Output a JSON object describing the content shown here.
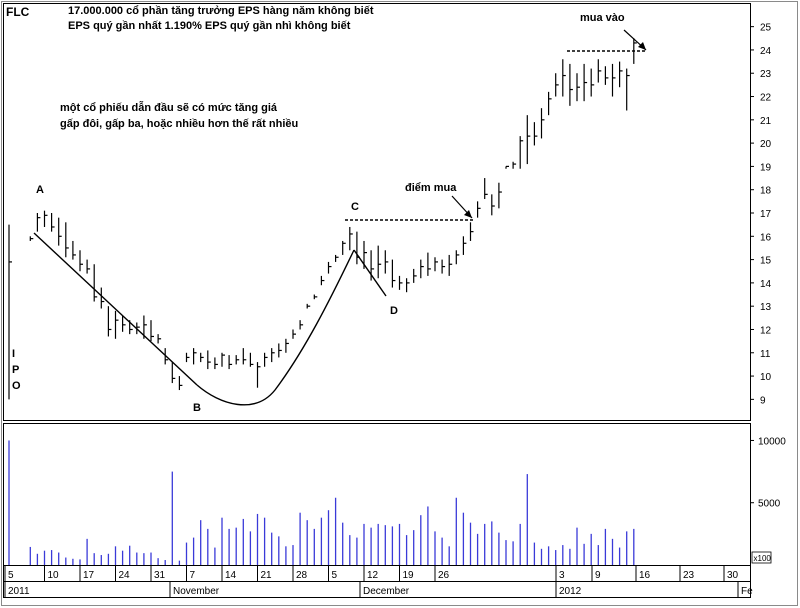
{
  "ticker": "FLC",
  "header": {
    "line1": "17.000.000 cổ phần   tăng trưởng EPS hàng năm không biết",
    "line2": "EPS quý gần nhất 1.190%   EPS quý gần nhì không biết"
  },
  "notes": {
    "line1": "một cổ phiếu dẫn đầu sẽ có mức tăng giá",
    "line2": "gấp đôi, gấp ba, hoặc nhiều hơn thế rất nhiều"
  },
  "ipo_letters": [
    "I",
    "P",
    "O"
  ],
  "annotations": {
    "A": "A",
    "B": "B",
    "C": "C",
    "D": "D",
    "buy_point": "điểm mua",
    "buy_in": "mua vào"
  },
  "volume_unit": "x100",
  "colors": {
    "price": "#000000",
    "volume": "#3a3ad8",
    "pattern": "#000000"
  },
  "chart_data": {
    "type": "bar",
    "subtype": "ohlc-with-volume",
    "x_tick_labels": [
      "5",
      "10",
      "17",
      "24",
      "31",
      "7",
      "14",
      "21",
      "28",
      "5",
      "12",
      "19",
      "26",
      "3",
      "9",
      "16",
      "23",
      "30"
    ],
    "x_period_labels": [
      "2011",
      "November",
      "December",
      "2012",
      "Fe"
    ],
    "price_axis": {
      "ticks": [
        9,
        10,
        11,
        12,
        13,
        14,
        15,
        16,
        17,
        18,
        19,
        20,
        21,
        22,
        23,
        24,
        25
      ],
      "ylim": [
        8.2,
        25.8
      ],
      "grid": false
    },
    "volume_axis": {
      "ticks": [
        5000,
        10000
      ],
      "ylim": [
        0,
        11000
      ],
      "unit": "x100"
    },
    "bars": [
      {
        "date": "2011-10-03",
        "high": 16.5,
        "low": 9.0,
        "close": 14.9,
        "volume": 10000
      },
      {
        "date": "2011-10-06",
        "high": 16.0,
        "low": 15.8,
        "close": 15.9,
        "volume": 1450
      },
      {
        "date": "2011-10-07",
        "high": 17.0,
        "low": 16.2,
        "close": 16.8,
        "volume": 900
      },
      {
        "date": "2011-10-10",
        "high": 17.1,
        "low": 16.4,
        "close": 16.9,
        "volume": 1150
      },
      {
        "date": "2011-10-11",
        "high": 17.0,
        "low": 16.2,
        "close": 16.4,
        "volume": 1200
      },
      {
        "date": "2011-10-12",
        "high": 16.8,
        "low": 15.6,
        "close": 16.0,
        "volume": 1000
      },
      {
        "date": "2011-10-13",
        "high": 16.6,
        "low": 15.1,
        "close": 15.5,
        "volume": 600
      },
      {
        "date": "2011-10-14",
        "high": 15.8,
        "low": 15.0,
        "close": 15.2,
        "volume": 500
      },
      {
        "date": "2011-10-17",
        "high": 15.4,
        "low": 14.5,
        "close": 14.8,
        "volume": 450
      },
      {
        "date": "2011-10-18",
        "high": 15.0,
        "low": 14.4,
        "close": 14.6,
        "volume": 2100
      },
      {
        "date": "2011-10-19",
        "high": 14.8,
        "low": 13.2,
        "close": 13.4,
        "volume": 950
      },
      {
        "date": "2011-10-20",
        "high": 13.8,
        "low": 12.9,
        "close": 13.2,
        "volume": 800
      },
      {
        "date": "2011-10-21",
        "high": 13.0,
        "low": 11.7,
        "close": 12.0,
        "volume": 900
      },
      {
        "date": "2011-10-24",
        "high": 12.8,
        "low": 11.6,
        "close": 12.4,
        "volume": 1500
      },
      {
        "date": "2011-10-25",
        "high": 12.6,
        "low": 11.9,
        "close": 12.2,
        "volume": 1150
      },
      {
        "date": "2011-10-26",
        "high": 12.4,
        "low": 11.8,
        "close": 12.0,
        "volume": 1550
      },
      {
        "date": "2011-10-27",
        "high": 12.3,
        "low": 11.8,
        "close": 12.1,
        "volume": 1000
      },
      {
        "date": "2011-10-28",
        "high": 12.6,
        "low": 11.6,
        "close": 12.2,
        "volume": 950
      },
      {
        "date": "2011-10-31",
        "high": 12.4,
        "low": 11.5,
        "close": 11.7,
        "volume": 1000
      },
      {
        "date": "2011-11-01",
        "high": 11.8,
        "low": 11.4,
        "close": 11.6,
        "volume": 550
      },
      {
        "date": "2011-11-02",
        "high": 11.2,
        "low": 10.5,
        "close": 10.7,
        "volume": 400
      },
      {
        "date": "2011-11-03",
        "high": 10.6,
        "low": 9.7,
        "close": 9.9,
        "volume": 7500
      },
      {
        "date": "2011-11-04",
        "high": 10.0,
        "low": 9.4,
        "close": 9.6,
        "volume": 350
      },
      {
        "date": "2011-11-07",
        "high": 11.0,
        "low": 10.6,
        "close": 10.8,
        "volume": 1800
      },
      {
        "date": "2011-11-08",
        "high": 11.2,
        "low": 10.5,
        "close": 11.0,
        "volume": 2200
      },
      {
        "date": "2011-11-09",
        "high": 11.0,
        "low": 10.6,
        "close": 10.8,
        "volume": 3600
      },
      {
        "date": "2011-11-10",
        "high": 11.1,
        "low": 10.3,
        "close": 10.6,
        "volume": 2900
      },
      {
        "date": "2011-11-11",
        "high": 10.8,
        "low": 10.3,
        "close": 10.5,
        "volume": 1400
      },
      {
        "date": "2011-11-14",
        "high": 11.0,
        "low": 10.4,
        "close": 10.9,
        "volume": 3800
      },
      {
        "date": "2011-11-15",
        "high": 10.9,
        "low": 10.3,
        "close": 10.5,
        "volume": 2900
      },
      {
        "date": "2011-11-16",
        "high": 10.9,
        "low": 10.5,
        "close": 10.7,
        "volume": 3000
      },
      {
        "date": "2011-11-17",
        "high": 11.2,
        "low": 10.5,
        "close": 10.7,
        "volume": 3700
      },
      {
        "date": "2011-11-18",
        "high": 11.0,
        "low": 10.4,
        "close": 10.5,
        "volume": 2700
      },
      {
        "date": "2011-11-21",
        "high": 10.6,
        "low": 9.5,
        "close": 10.4,
        "volume": 4100
      },
      {
        "date": "2011-11-22",
        "high": 11.0,
        "low": 10.4,
        "close": 10.8,
        "volume": 3800
      },
      {
        "date": "2011-11-23",
        "high": 11.2,
        "low": 10.6,
        "close": 11.0,
        "volume": 2600
      },
      {
        "date": "2011-11-24",
        "high": 11.4,
        "low": 10.8,
        "close": 11.1,
        "volume": 2300
      },
      {
        "date": "2011-11-25",
        "high": 11.6,
        "low": 11.0,
        "close": 11.4,
        "volume": 1500
      },
      {
        "date": "2011-11-28",
        "high": 12.0,
        "low": 11.6,
        "close": 11.8,
        "volume": 1600
      },
      {
        "date": "2011-11-29",
        "high": 12.4,
        "low": 12.0,
        "close": 12.2,
        "volume": 4200
      },
      {
        "date": "2011-11-30",
        "high": 13.1,
        "low": 12.9,
        "close": 13.0,
        "volume": 3600
      },
      {
        "date": "2011-12-01",
        "high": 13.5,
        "low": 13.3,
        "close": 13.4,
        "volume": 2900
      },
      {
        "date": "2011-12-02",
        "high": 14.3,
        "low": 13.9,
        "close": 14.1,
        "volume": 3800
      },
      {
        "date": "2011-12-05",
        "high": 14.9,
        "low": 14.4,
        "close": 14.7,
        "volume": 4400
      },
      {
        "date": "2011-12-06",
        "high": 15.2,
        "low": 14.9,
        "close": 15.1,
        "volume": 5400
      },
      {
        "date": "2011-12-07",
        "high": 15.8,
        "low": 15.2,
        "close": 15.7,
        "volume": 3400
      },
      {
        "date": "2011-12-08",
        "high": 16.4,
        "low": 15.4,
        "close": 16.1,
        "volume": 2400
      },
      {
        "date": "2011-12-09",
        "high": 16.2,
        "low": 14.8,
        "close": 15.1,
        "volume": 2200
      },
      {
        "date": "2011-12-12",
        "high": 15.8,
        "low": 14.6,
        "close": 15.3,
        "volume": 3300
      },
      {
        "date": "2011-12-13",
        "high": 15.4,
        "low": 14.1,
        "close": 14.6,
        "volume": 3000
      },
      {
        "date": "2011-12-14",
        "high": 15.6,
        "low": 14.2,
        "close": 14.8,
        "volume": 3300
      },
      {
        "date": "2011-12-15",
        "high": 15.4,
        "low": 14.4,
        "close": 14.9,
        "volume": 3200
      },
      {
        "date": "2011-12-16",
        "high": 15.0,
        "low": 13.8,
        "close": 14.1,
        "volume": 3100
      },
      {
        "date": "2011-12-19",
        "high": 14.3,
        "low": 13.7,
        "close": 14.0,
        "volume": 3300
      },
      {
        "date": "2011-12-20",
        "high": 14.2,
        "low": 13.6,
        "close": 14.0,
        "volume": 2400
      },
      {
        "date": "2011-12-21",
        "high": 14.6,
        "low": 14.0,
        "close": 14.3,
        "volume": 2800
      },
      {
        "date": "2011-12-22",
        "high": 15.0,
        "low": 14.2,
        "close": 14.7,
        "volume": 4000
      },
      {
        "date": "2011-12-23",
        "high": 15.3,
        "low": 14.3,
        "close": 14.6,
        "volume": 4700
      },
      {
        "date": "2011-12-26",
        "high": 15.1,
        "low": 14.5,
        "close": 14.9,
        "volume": 2700
      },
      {
        "date": "2011-12-27",
        "high": 15.0,
        "low": 14.4,
        "close": 14.7,
        "volume": 2200
      },
      {
        "date": "2011-12-28",
        "high": 15.2,
        "low": 14.3,
        "close": 14.8,
        "volume": 1500
      },
      {
        "date": "2011-12-29",
        "high": 15.4,
        "low": 14.8,
        "close": 15.2,
        "volume": 5400
      },
      {
        "date": "2011-12-30",
        "high": 16.0,
        "low": 15.2,
        "close": 15.7,
        "volume": 4200
      },
      {
        "date": "2012-01-02",
        "high": 16.6,
        "low": 15.8,
        "close": 16.2,
        "volume": 3400
      },
      {
        "date": "2012-01-03",
        "high": 17.5,
        "low": 16.8,
        "close": 17.2,
        "volume": 2500
      },
      {
        "date": "2012-01-04",
        "high": 18.5,
        "low": 17.6,
        "close": 17.8,
        "volume": 3300
      },
      {
        "date": "2012-01-05",
        "high": 17.8,
        "low": 16.9,
        "close": 17.3,
        "volume": 3500
      },
      {
        "date": "2012-01-06",
        "high": 18.3,
        "low": 17.2,
        "close": 17.9,
        "volume": 2600
      },
      {
        "date": "2012-01-09",
        "high": 19.0,
        "low": 18.9,
        "close": 19.0,
        "volume": 2000
      },
      {
        "date": "2012-01-10",
        "high": 19.2,
        "low": 18.9,
        "close": 19.1,
        "volume": 1900
      },
      {
        "date": "2012-01-11",
        "high": 20.3,
        "low": 18.9,
        "close": 20.1,
        "volume": 3300
      },
      {
        "date": "2012-01-12",
        "high": 21.2,
        "low": 19.1,
        "close": 20.3,
        "volume": 7300
      },
      {
        "date": "2012-01-13",
        "high": 20.9,
        "low": 19.9,
        "close": 20.3,
        "volume": 1800
      },
      {
        "date": "2012-01-16",
        "high": 21.5,
        "low": 20.2,
        "close": 21.0,
        "volume": 1300
      },
      {
        "date": "2012-01-17",
        "high": 22.2,
        "low": 21.2,
        "close": 21.9,
        "volume": 1500
      },
      {
        "date": "2012-01-18",
        "high": 23.0,
        "low": 22.0,
        "close": 22.5,
        "volume": 1200
      },
      {
        "date": "2012-01-19",
        "high": 23.6,
        "low": 22.0,
        "close": 22.9,
        "volume": 1600
      },
      {
        "date": "2012-01-20",
        "high": 23.4,
        "low": 21.6,
        "close": 22.3,
        "volume": 1300
      },
      {
        "date": "2012-01-23",
        "high": 23.0,
        "low": 21.8,
        "close": 22.4,
        "volume": 3000
      },
      {
        "date": "2012-01-24",
        "high": 23.4,
        "low": 21.8,
        "close": 22.6,
        "volume": 1700
      },
      {
        "date": "2012-01-25",
        "high": 23.2,
        "low": 22.0,
        "close": 22.5,
        "volume": 2500
      },
      {
        "date": "2012-01-26",
        "high": 23.6,
        "low": 22.6,
        "close": 23.1,
        "volume": 1600
      },
      {
        "date": "2012-01-27",
        "high": 23.3,
        "low": 22.5,
        "close": 22.8,
        "volume": 2900
      },
      {
        "date": "2012-01-30",
        "high": 23.4,
        "low": 22.0,
        "close": 22.8,
        "volume": 2100
      },
      {
        "date": "2012-01-31",
        "high": 23.5,
        "low": 22.4,
        "close": 23.1,
        "volume": 1400
      },
      {
        "date": "2012-02-01",
        "high": 23.2,
        "low": 21.4,
        "close": 22.9,
        "volume": 2700
      },
      {
        "date": "2012-02-02",
        "high": 24.5,
        "low": 23.4,
        "close": 24.3,
        "volume": 2900
      }
    ]
  }
}
